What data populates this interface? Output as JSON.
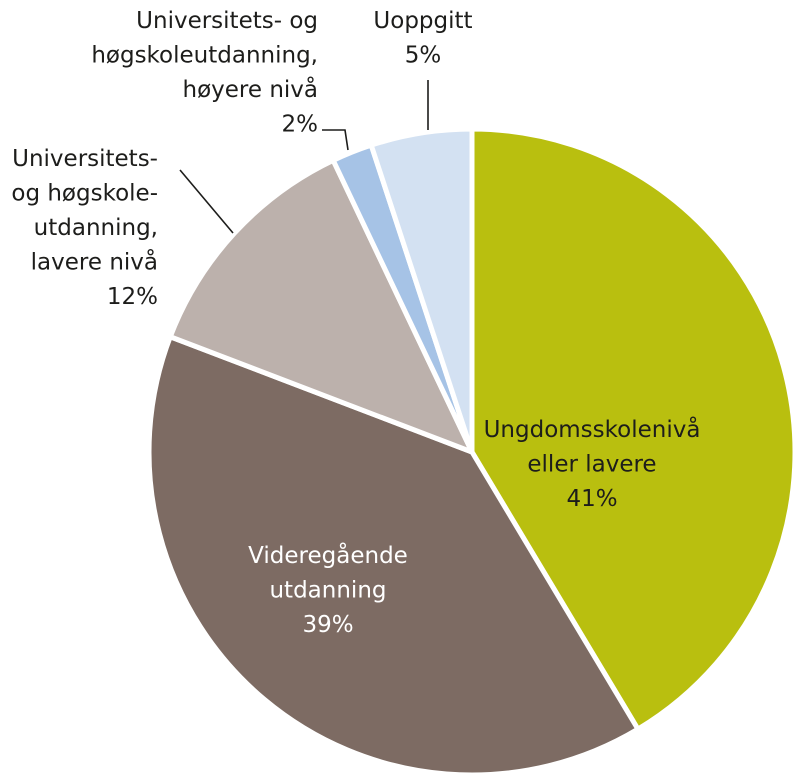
{
  "chart_data": {
    "type": "pie",
    "title": "",
    "slices": [
      {
        "lines": [
          "Ungdomsskolenivå",
          "eller lavere"
        ],
        "value_label": "41%",
        "value": 41,
        "color": "#b9bf0f",
        "text_color": "#1d1d1b"
      },
      {
        "lines": [
          "Videregående",
          "utdanning"
        ],
        "value_label": "39%",
        "value": 39,
        "color": "#7d6b63",
        "text_color": "#ffffff"
      },
      {
        "lines": [
          "Universitets-",
          "og høgskole-",
          "utdanning,",
          "lavere nivå"
        ],
        "value_label": "12%",
        "value": 12,
        "color": "#bcb1ac",
        "text_color": "#1d1d1b"
      },
      {
        "lines": [
          "Universitets- og",
          "høgskoleutdanning,",
          "høyere nivå"
        ],
        "value_label": "2%",
        "value": 2,
        "color": "#a6c3e6",
        "text_color": "#1d1d1b"
      },
      {
        "lines": [
          "Uoppgitt"
        ],
        "value_label": "5%",
        "value": 5,
        "color": "#d3e1f2",
        "text_color": "#1d1d1b"
      }
    ]
  }
}
